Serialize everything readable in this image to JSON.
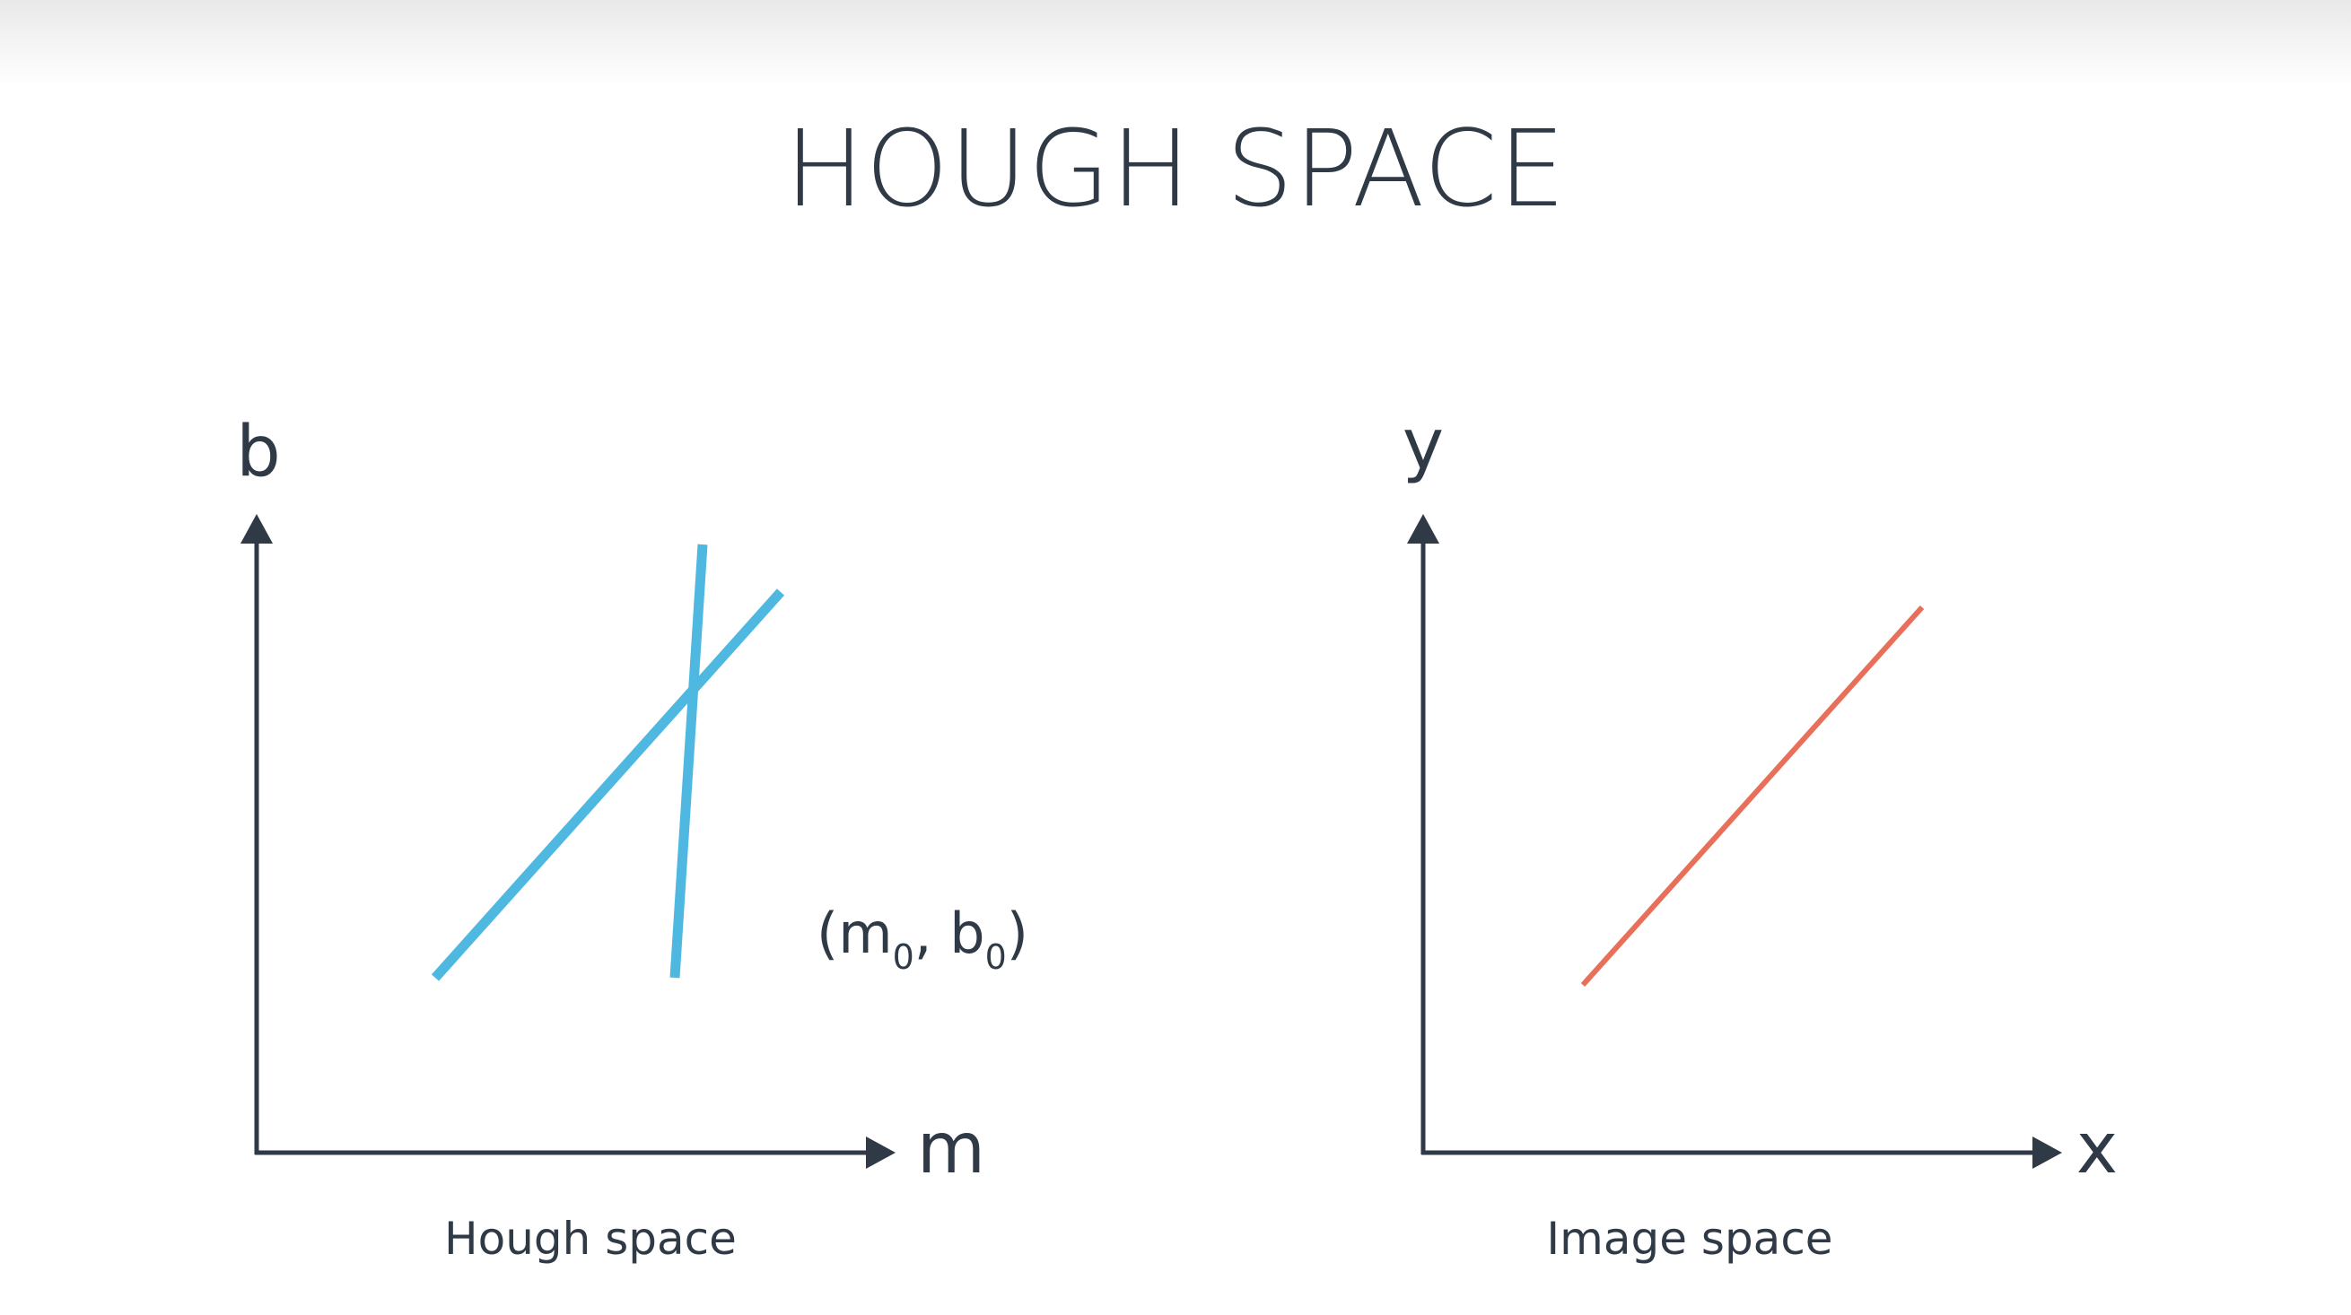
{
  "title": "HOUGH SPACE",
  "colors": {
    "axis": "#2f3a46",
    "hough_lines": "#4fb8e0",
    "image_line": "#e8705a"
  },
  "left_panel": {
    "y_axis_label": "b",
    "x_axis_label": "m",
    "caption": "Hough space",
    "intersection_label": {
      "open": "(m",
      "sub1": "0",
      "sep": ", b",
      "sub2": "0",
      "close": ")"
    }
  },
  "right_panel": {
    "y_axis_label": "y",
    "x_axis_label": "x",
    "caption": "Image space"
  }
}
